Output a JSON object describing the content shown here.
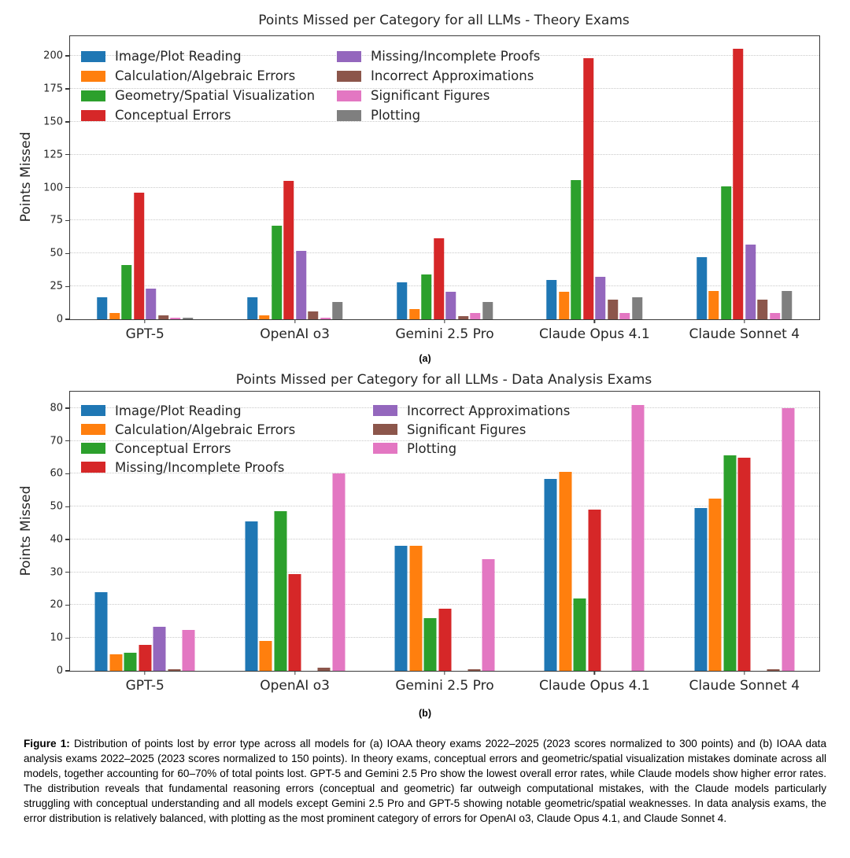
{
  "page": {
    "background": "#ffffff"
  },
  "figure": {
    "caption_label": "Figure 1:",
    "caption_text": " Distribution of points lost by error type across all models for (a) IOAA theory exams 2022–2025 (2023 scores normalized to 300 points) and (b) IOAA data analysis exams 2022–2025 (2023 scores normalized to 150 points). In theory exams, conceptual errors and geometric/spatial visualization mistakes dominate across all models, together accounting for 60–70% of total points lost.  GPT-5 and Gemini 2.5 Pro show the lowest overall error rates, while Claude models show higher error rates.  The distribution reveals that fundamental reasoning errors (conceptual and geometric) far outweigh computational mistakes, with the Claude models particularly struggling with conceptual understanding and all models except Gemini 2.5 Pro and GPT-5 showing notable geometric/spatial weaknesses.  In data analysis exams, the error distribution is relatively balanced, with plotting as the most prominent category of errors for OpenAI o3, Claude Opus 4.1, and Claude Sonnet 4."
  },
  "chart_data": [
    {
      "id": "a",
      "type": "bar",
      "panel_label": "(a)",
      "title": "Points Missed per Category for all LLMs - Theory Exams",
      "ylabel": "Points Missed",
      "xlabel": "",
      "grid": "horizontal-dotted",
      "legend_position": "upper left, two columns",
      "legend_split": 4,
      "categories": [
        "GPT-5",
        "OpenAI o3",
        "Gemini 2.5 Pro",
        "Claude Opus 4.1",
        "Claude Sonnet 4"
      ],
      "series": [
        {
          "name": "Image/Plot Reading",
          "color": "#1f77b4",
          "values": [
            17,
            17,
            28,
            30,
            47
          ]
        },
        {
          "name": "Calculation/Algebraic Errors",
          "color": "#ff7f0e",
          "values": [
            5,
            3,
            7.5,
            21,
            21.5
          ]
        },
        {
          "name": "Geometry/Spatial Visualization",
          "color": "#2ca02c",
          "values": [
            41,
            71,
            34,
            106,
            101
          ]
        },
        {
          "name": "Conceptual Errors",
          "color": "#d62728",
          "values": [
            96,
            105,
            61.5,
            198,
            205.5
          ]
        },
        {
          "name": "Missing/Incomplete Proofs",
          "color": "#9467bd",
          "values": [
            23.5,
            52,
            21,
            32.5,
            56.5
          ]
        },
        {
          "name": "Incorrect Approximations",
          "color": "#8c564b",
          "values": [
            3,
            6,
            2.5,
            15,
            15
          ]
        },
        {
          "name": "Significant Figures",
          "color": "#e377c2",
          "values": [
            1.5,
            1,
            4.5,
            5,
            5
          ]
        },
        {
          "name": "Plotting",
          "color": "#7f7f7f",
          "values": [
            1.5,
            13,
            13,
            16.5,
            21.5
          ]
        }
      ],
      "yticks": [
        0,
        25,
        50,
        75,
        100,
        125,
        150,
        175,
        200
      ],
      "ylim": [
        0,
        215
      ]
    },
    {
      "id": "b",
      "type": "bar",
      "panel_label": "(b)",
      "title": "Points Missed per Category for all LLMs - Data Analysis Exams",
      "ylabel": "Points Missed",
      "xlabel": "",
      "grid": "horizontal-dotted",
      "legend_position": "upper left, two columns",
      "legend_split": 4,
      "categories": [
        "GPT-5",
        "OpenAI o3",
        "Gemini 2.5 Pro",
        "Claude Opus 4.1",
        "Claude Sonnet 4"
      ],
      "series": [
        {
          "name": "Image/Plot Reading",
          "color": "#1f77b4",
          "values": [
            24,
            45.5,
            38,
            58.5,
            49.5
          ]
        },
        {
          "name": "Calculation/Algebraic Errors",
          "color": "#ff7f0e",
          "values": [
            5,
            9,
            38,
            60.5,
            52.5
          ]
        },
        {
          "name": "Conceptual Errors",
          "color": "#2ca02c",
          "values": [
            5.5,
            48.5,
            16,
            22,
            65.5
          ]
        },
        {
          "name": "Missing/Incomplete Proofs",
          "color": "#d62728",
          "values": [
            8,
            29.5,
            19,
            49,
            65
          ]
        },
        {
          "name": "Incorrect Approximations",
          "color": "#9467bd",
          "values": [
            13.5,
            0,
            0,
            0,
            0
          ]
        },
        {
          "name": "Significant Figures",
          "color": "#8c564b",
          "values": [
            0.5,
            1,
            0.5,
            0,
            0.5
          ]
        },
        {
          "name": "Plotting",
          "color": "#e377c2",
          "values": [
            12.5,
            60,
            34,
            81,
            80
          ]
        }
      ],
      "yticks": [
        0,
        10,
        20,
        30,
        40,
        50,
        60,
        70,
        80
      ],
      "ylim": [
        0,
        85
      ]
    }
  ]
}
